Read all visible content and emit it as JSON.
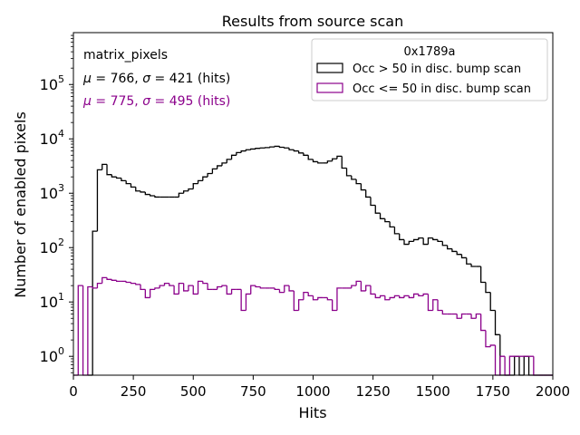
{
  "chart_data": {
    "type": "histogram",
    "title": "Results from source scan",
    "xlabel": "Hits",
    "ylabel": "Number of enabled pixels",
    "xlim": [
      0,
      2000
    ],
    "ylim": [
      0.45,
      900000
    ],
    "yscale": "log",
    "grid": false,
    "bin_width": 20,
    "x_ticks": [
      {
        "value": 0,
        "label": "0"
      },
      {
        "value": 250,
        "label": "250"
      },
      {
        "value": 500,
        "label": "500"
      },
      {
        "value": 750,
        "label": "750"
      },
      {
        "value": 1000,
        "label": "1000"
      },
      {
        "value": 1250,
        "label": "1250"
      },
      {
        "value": 1500,
        "label": "1500"
      },
      {
        "value": 1750,
        "label": "1750"
      },
      {
        "value": 2000,
        "label": "2000"
      }
    ],
    "y_ticks": [
      {
        "value": 1,
        "base": "10",
        "exp": "0"
      },
      {
        "value": 10,
        "base": "10",
        "exp": "1"
      },
      {
        "value": 100,
        "base": "10",
        "exp": "2"
      },
      {
        "value": 1000,
        "base": "10",
        "exp": "3"
      },
      {
        "value": 10000,
        "base": "10",
        "exp": "4"
      },
      {
        "value": 100000,
        "base": "10",
        "exp": "5"
      }
    ],
    "annotations": [
      {
        "text": "matrix_pixels",
        "color": "#000000"
      },
      {
        "mu": "766",
        "sigma": "421",
        "unit": "(hits)",
        "color": "#000000"
      },
      {
        "mu": "775",
        "sigma": "495",
        "unit": "(hits)",
        "color": "#8b008b"
      }
    ],
    "legend": {
      "title": "0x1789a",
      "placement": "top-right",
      "entries": [
        {
          "label": "Occ > 50 in disc. bump scan",
          "color": "#000000"
        },
        {
          "label": "Occ <= 50 in disc. bump scan",
          "color": "#8b008b"
        }
      ]
    },
    "series": [
      {
        "name": "Occ > 50 in disc. bump scan",
        "color": "#000000",
        "bins": [
          [
            60,
            0
          ],
          [
            80,
            200
          ],
          [
            100,
            2700
          ],
          [
            120,
            3400
          ],
          [
            140,
            2200
          ],
          [
            160,
            2000
          ],
          [
            180,
            1900
          ],
          [
            200,
            1700
          ],
          [
            220,
            1500
          ],
          [
            240,
            1300
          ],
          [
            260,
            1100
          ],
          [
            280,
            1050
          ],
          [
            300,
            950
          ],
          [
            320,
            900
          ],
          [
            340,
            850
          ],
          [
            360,
            850
          ],
          [
            380,
            850
          ],
          [
            400,
            850
          ],
          [
            420,
            850
          ],
          [
            440,
            1000
          ],
          [
            460,
            1100
          ],
          [
            480,
            1200
          ],
          [
            500,
            1500
          ],
          [
            520,
            1700
          ],
          [
            540,
            2000
          ],
          [
            560,
            2300
          ],
          [
            580,
            2800
          ],
          [
            600,
            3200
          ],
          [
            620,
            3600
          ],
          [
            640,
            4200
          ],
          [
            660,
            5000
          ],
          [
            680,
            5600
          ],
          [
            700,
            6000
          ],
          [
            720,
            6300
          ],
          [
            740,
            6500
          ],
          [
            760,
            6700
          ],
          [
            780,
            6800
          ],
          [
            800,
            6900
          ],
          [
            820,
            7100
          ],
          [
            840,
            7300
          ],
          [
            860,
            7000
          ],
          [
            880,
            6800
          ],
          [
            900,
            6300
          ],
          [
            920,
            6000
          ],
          [
            940,
            5500
          ],
          [
            960,
            5000
          ],
          [
            980,
            4200
          ],
          [
            1000,
            3800
          ],
          [
            1020,
            3600
          ],
          [
            1040,
            3600
          ],
          [
            1060,
            3900
          ],
          [
            1080,
            4300
          ],
          [
            1100,
            4800
          ],
          [
            1120,
            2900
          ],
          [
            1140,
            2100
          ],
          [
            1160,
            1800
          ],
          [
            1180,
            1500
          ],
          [
            1200,
            1150
          ],
          [
            1220,
            850
          ],
          [
            1240,
            600
          ],
          [
            1260,
            430
          ],
          [
            1280,
            340
          ],
          [
            1300,
            300
          ],
          [
            1320,
            240
          ],
          [
            1340,
            180
          ],
          [
            1360,
            140
          ],
          [
            1380,
            115
          ],
          [
            1400,
            130
          ],
          [
            1420,
            140
          ],
          [
            1440,
            150
          ],
          [
            1460,
            115
          ],
          [
            1480,
            150
          ],
          [
            1500,
            140
          ],
          [
            1520,
            130
          ],
          [
            1540,
            110
          ],
          [
            1560,
            95
          ],
          [
            1580,
            85
          ],
          [
            1600,
            75
          ],
          [
            1620,
            65
          ],
          [
            1640,
            50
          ],
          [
            1660,
            45
          ],
          [
            1680,
            45
          ],
          [
            1700,
            23
          ],
          [
            1720,
            15
          ],
          [
            1740,
            7
          ],
          [
            1760,
            2.5
          ],
          [
            1780,
            0
          ],
          [
            1800,
            0
          ],
          [
            1820,
            0
          ],
          [
            1840,
            1
          ],
          [
            1860,
            0
          ],
          [
            1880,
            1
          ],
          [
            1900,
            0
          ],
          [
            1920,
            0
          ],
          [
            1940,
            0
          ],
          [
            1960,
            0
          ],
          [
            1980,
            0
          ]
        ]
      },
      {
        "name": "Occ <= 50 in disc. bump scan",
        "color": "#8b008b",
        "bins": [
          [
            0,
            0
          ],
          [
            20,
            20
          ],
          [
            40,
            0
          ],
          [
            60,
            19
          ],
          [
            80,
            18
          ],
          [
            100,
            22
          ],
          [
            120,
            28
          ],
          [
            140,
            26
          ],
          [
            160,
            25
          ],
          [
            180,
            24
          ],
          [
            200,
            24
          ],
          [
            220,
            23
          ],
          [
            240,
            22
          ],
          [
            260,
            21
          ],
          [
            280,
            17
          ],
          [
            300,
            12
          ],
          [
            320,
            17
          ],
          [
            340,
            18
          ],
          [
            360,
            20
          ],
          [
            380,
            22
          ],
          [
            400,
            20
          ],
          [
            420,
            14
          ],
          [
            440,
            22
          ],
          [
            460,
            16
          ],
          [
            480,
            20
          ],
          [
            500,
            14
          ],
          [
            520,
            24
          ],
          [
            540,
            22
          ],
          [
            560,
            17
          ],
          [
            580,
            17
          ],
          [
            600,
            19
          ],
          [
            620,
            20
          ],
          [
            640,
            14
          ],
          [
            660,
            17
          ],
          [
            680,
            17
          ],
          [
            700,
            7
          ],
          [
            720,
            14
          ],
          [
            740,
            20
          ],
          [
            760,
            19
          ],
          [
            780,
            18
          ],
          [
            800,
            18
          ],
          [
            820,
            18
          ],
          [
            840,
            17
          ],
          [
            860,
            15
          ],
          [
            880,
            20
          ],
          [
            900,
            16
          ],
          [
            920,
            7
          ],
          [
            940,
            11
          ],
          [
            960,
            15
          ],
          [
            980,
            13
          ],
          [
            1000,
            11
          ],
          [
            1020,
            12
          ],
          [
            1040,
            12
          ],
          [
            1060,
            11
          ],
          [
            1080,
            7
          ],
          [
            1100,
            18
          ],
          [
            1120,
            18
          ],
          [
            1140,
            18
          ],
          [
            1160,
            20
          ],
          [
            1180,
            24
          ],
          [
            1200,
            16
          ],
          [
            1220,
            20
          ],
          [
            1240,
            14
          ],
          [
            1260,
            12
          ],
          [
            1280,
            13
          ],
          [
            1300,
            11
          ],
          [
            1320,
            12
          ],
          [
            1340,
            13
          ],
          [
            1360,
            12
          ],
          [
            1380,
            13
          ],
          [
            1400,
            12
          ],
          [
            1420,
            14
          ],
          [
            1440,
            13
          ],
          [
            1460,
            14
          ],
          [
            1480,
            7
          ],
          [
            1500,
            11
          ],
          [
            1520,
            7
          ],
          [
            1540,
            6
          ],
          [
            1560,
            6
          ],
          [
            1580,
            6
          ],
          [
            1600,
            5
          ],
          [
            1620,
            6
          ],
          [
            1640,
            6
          ],
          [
            1660,
            5
          ],
          [
            1680,
            6
          ],
          [
            1700,
            3
          ],
          [
            1720,
            1.5
          ],
          [
            1740,
            1.6
          ],
          [
            1760,
            0
          ],
          [
            1780,
            1
          ],
          [
            1800,
            0
          ],
          [
            1820,
            1
          ],
          [
            1840,
            1
          ],
          [
            1860,
            1
          ],
          [
            1880,
            1
          ],
          [
            1900,
            1
          ],
          [
            1920,
            0
          ],
          [
            1940,
            0
          ],
          [
            1960,
            0
          ],
          [
            1980,
            0
          ]
        ]
      }
    ]
  }
}
